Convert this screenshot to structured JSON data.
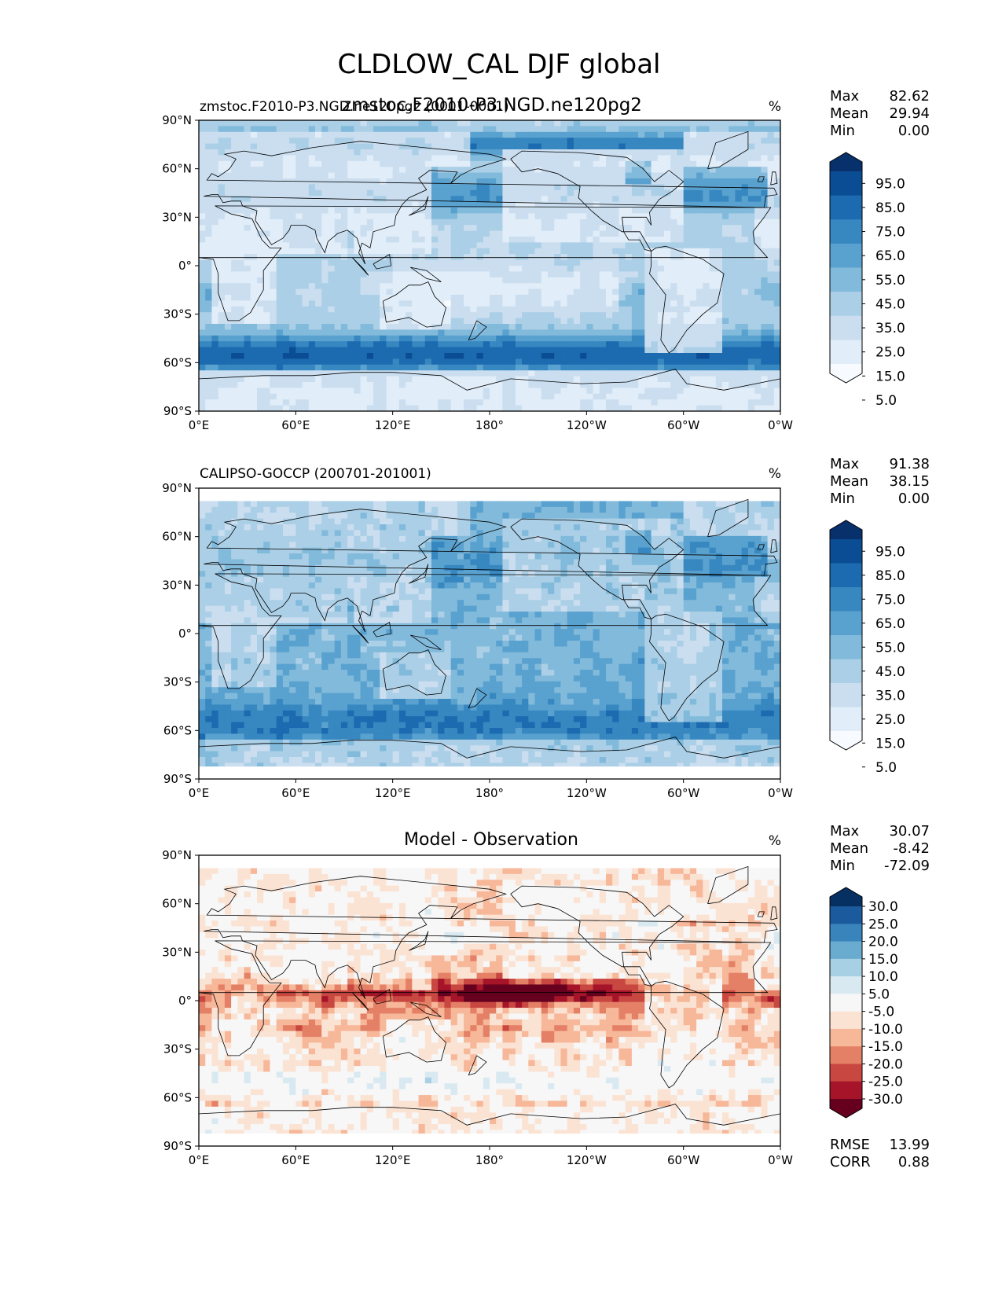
{
  "figure": {
    "title": "CLDLOW_CAL DJF global",
    "overlay_title": "zmstoc.F2010-P3.NGD.ne120pg2"
  },
  "colors": {
    "seq": [
      "#f7fbff",
      "#e1edf8",
      "#cadef0",
      "#abcfe6",
      "#82badb",
      "#59a1cf",
      "#3787c0",
      "#1c6aaf",
      "#0b4d94",
      "#08306b"
    ],
    "div": [
      "#67001f",
      "#a51429",
      "#c94741",
      "#e48066",
      "#f7b799",
      "#fbe3d4",
      "#f7f7f7",
      "#d9e9f1",
      "#a7d0e4",
      "#6aacd0",
      "#3884bb",
      "#1b5a9c",
      "#053061"
    ],
    "coast": "#000000"
  },
  "axes": {
    "lat_ticks": [
      "90°N",
      "60°N",
      "30°N",
      "0°",
      "30°S",
      "60°S",
      "90°S"
    ],
    "lon_ticks": [
      "0°E",
      "60°E",
      "120°E",
      "180°",
      "120°W",
      "60°W",
      "0°W"
    ]
  },
  "chart_data": [
    {
      "type": "heatmap",
      "name": "model",
      "left_title": "zmstoc.F2010-P3.NGD.ne120pg2 (0001-0001)",
      "center_title": "",
      "units": "%",
      "stats": [
        {
          "label": "Max",
          "value": "82.62"
        },
        {
          "label": "Mean",
          "value": "29.94"
        },
        {
          "label": "Min",
          "value": "0.00"
        }
      ],
      "colorbar_labels": [
        "95.0",
        "85.0",
        "75.0",
        "65.0",
        "55.0",
        "45.0",
        "35.0",
        "25.0",
        "15.0",
        "5.0"
      ],
      "palette": "seq",
      "lat_range": [
        -90,
        90
      ],
      "lon_range": [
        0,
        360
      ]
    },
    {
      "type": "heatmap",
      "name": "observation",
      "left_title": "CALIPSO-GOCCP (200701-201001)",
      "center_title": "",
      "units": "%",
      "stats": [
        {
          "label": "Max",
          "value": "91.38"
        },
        {
          "label": "Mean",
          "value": "38.15"
        },
        {
          "label": "Min",
          "value": "0.00"
        }
      ],
      "colorbar_labels": [
        "95.0",
        "85.0",
        "75.0",
        "65.0",
        "55.0",
        "45.0",
        "35.0",
        "25.0",
        "15.0",
        "5.0"
      ],
      "palette": "seq",
      "lat_range": [
        -82,
        82
      ],
      "lon_range": [
        0,
        360
      ]
    },
    {
      "type": "heatmap",
      "name": "difference",
      "left_title": "",
      "center_title": "Model - Observation",
      "units": "%",
      "stats": [
        {
          "label": "Max",
          "value": "30.07"
        },
        {
          "label": "Mean",
          "value": "-8.42"
        },
        {
          "label": "Min",
          "value": "-72.09"
        }
      ],
      "colorbar_labels": [
        "30.0",
        "25.0",
        "20.0",
        "15.0",
        "10.0",
        "5.0",
        "-5.0",
        "-10.0",
        "-15.0",
        "-20.0",
        "-25.0",
        "-30.0"
      ],
      "palette": "div",
      "lat_range": [
        -82,
        82
      ],
      "lon_range": [
        0,
        360
      ],
      "metrics": [
        {
          "label": "RMSE",
          "value": "13.99"
        },
        {
          "label": "CORR",
          "value": "0.88"
        }
      ]
    }
  ]
}
